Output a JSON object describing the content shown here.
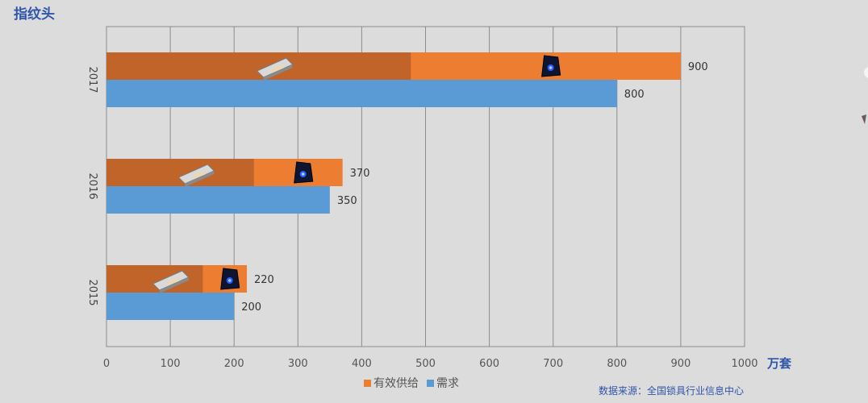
{
  "page": {
    "title": "指纹头",
    "unit": "万套",
    "source": "数据来源：全国锁具行业信息中心"
  },
  "legend": {
    "supply_label": "有效供给",
    "demand_label": "需求"
  },
  "colors": {
    "supply": "#ed7d31",
    "supply_dark": "#c0642a",
    "demand": "#5b9bd5",
    "title": "#2e55a8"
  },
  "icons": {
    "bar_icons": [
      "fingerprint-module-icon",
      "fingerprint-sensor-icon"
    ]
  },
  "chart_data": {
    "type": "bar",
    "orientation": "horizontal",
    "categories": [
      "2017",
      "2016",
      "2015"
    ],
    "series": [
      {
        "name": "有效供给",
        "values": [
          900,
          370,
          220
        ]
      },
      {
        "name": "需求",
        "values": [
          800,
          350,
          200
        ]
      }
    ],
    "supply_dark_segment": [
      477,
      231,
      151
    ],
    "xlim": [
      0,
      1000
    ],
    "xticks": [
      0,
      100,
      200,
      300,
      400,
      500,
      600,
      700,
      800,
      900,
      1000
    ],
    "grid": true,
    "legend_position": "bottom"
  }
}
